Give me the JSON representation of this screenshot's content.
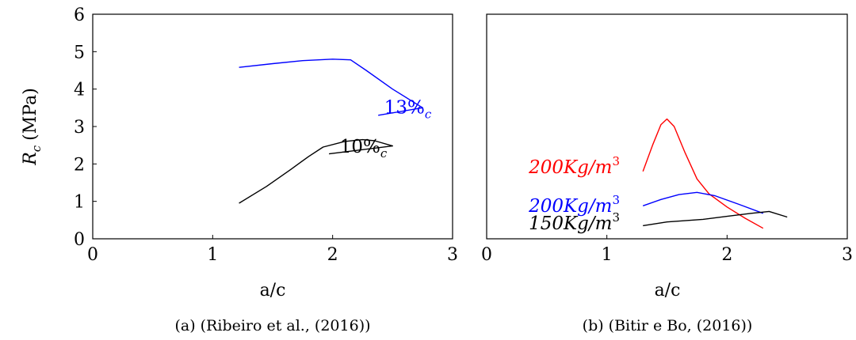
{
  "chart_data": [
    {
      "type": "line",
      "caption": "(a) (Ribeiro et al., (2016))",
      "xlabel": "a/c",
      "ylabel_main": "R",
      "ylabel_sub": "c",
      "ylabel_unit": "(MPa)",
      "xlim": [
        0,
        3
      ],
      "ylim": [
        0,
        6
      ],
      "xticks": [
        "0",
        "1",
        "2",
        "3"
      ],
      "yticks": [
        "0",
        "1",
        "2",
        "3",
        "4",
        "5",
        "6"
      ],
      "grid": false,
      "series": [
        {
          "label_main": "13%",
          "label_sub": "c",
          "color": "#0000ff",
          "label_at": [
            2.43,
            3.35
          ],
          "points": [
            [
              1.22,
              4.58
            ],
            [
              1.5,
              4.68
            ],
            [
              1.75,
              4.76
            ],
            [
              2.0,
              4.8
            ],
            [
              2.15,
              4.78
            ],
            [
              2.28,
              4.5
            ],
            [
              2.5,
              4.0
            ],
            [
              2.75,
              3.5
            ],
            [
              2.38,
              3.3
            ]
          ]
        },
        {
          "label_main": "10%",
          "label_sub": "c",
          "color": "#000000",
          "label_at": [
            2.06,
            2.3
          ],
          "points": [
            [
              1.22,
              0.95
            ],
            [
              1.45,
              1.4
            ],
            [
              1.65,
              1.85
            ],
            [
              1.8,
              2.2
            ],
            [
              1.92,
              2.45
            ],
            [
              2.1,
              2.6
            ],
            [
              2.25,
              2.65
            ],
            [
              2.35,
              2.62
            ],
            [
              2.5,
              2.48
            ],
            [
              1.97,
              2.27
            ]
          ]
        }
      ]
    },
    {
      "type": "line",
      "caption": "(b) (Bitir e Bo, (2016))",
      "xlabel": "a/c",
      "xlim": [
        0,
        3
      ],
      "ylim": [
        0,
        6
      ],
      "xticks": [
        "0",
        "1",
        "2",
        "3"
      ],
      "grid": false,
      "series": [
        {
          "label_main": "200Kg/m",
          "label_sup": "3",
          "color": "#ff0000",
          "label_at": [
            0.35,
            1.75
          ],
          "points": [
            [
              1.3,
              1.8
            ],
            [
              1.38,
              2.5
            ],
            [
              1.45,
              3.05
            ],
            [
              1.5,
              3.2
            ],
            [
              1.56,
              3.0
            ],
            [
              1.65,
              2.3
            ],
            [
              1.75,
              1.6
            ],
            [
              1.85,
              1.2
            ],
            [
              2.0,
              0.85
            ],
            [
              2.15,
              0.55
            ],
            [
              2.3,
              0.28
            ]
          ]
        },
        {
          "label_main": "200Kg/m",
          "label_sup": "3",
          "color": "#0000ff",
          "label_at": [
            0.35,
            0.72
          ],
          "points": [
            [
              1.3,
              0.88
            ],
            [
              1.45,
              1.05
            ],
            [
              1.6,
              1.18
            ],
            [
              1.75,
              1.24
            ],
            [
              1.9,
              1.15
            ],
            [
              2.1,
              0.92
            ],
            [
              2.3,
              0.68
            ]
          ]
        },
        {
          "label_main": "150Kg/m",
          "label_sup": "3",
          "color": "#000000",
          "label_at": [
            0.35,
            0.25
          ],
          "points": [
            [
              1.3,
              0.35
            ],
            [
              1.5,
              0.45
            ],
            [
              1.8,
              0.52
            ],
            [
              2.0,
              0.6
            ],
            [
              2.2,
              0.68
            ],
            [
              2.35,
              0.73
            ],
            [
              2.5,
              0.58
            ]
          ]
        }
      ]
    }
  ]
}
